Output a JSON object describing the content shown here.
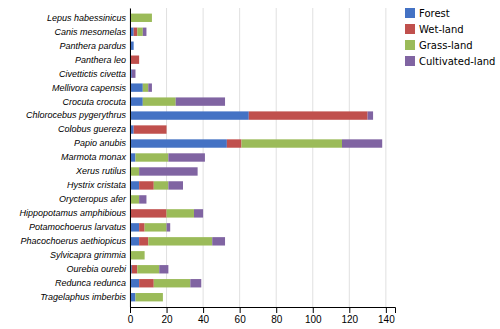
{
  "chart_data": {
    "type": "bar",
    "orientation": "horizontal",
    "stacked": true,
    "categories": [
      "Lepus habessinicus",
      "Canis mesomelas",
      "Panthera pardus",
      "Panthera leo",
      "Civettictis civetta",
      "Mellivora capensis",
      "Crocuta crocuta",
      "Chlorocebus pygerythrus",
      "Colobus guereza",
      "Papio anubis",
      "Marmota monax",
      "Xerus rutilus",
      "Hystrix cristata",
      "Orycteropus afer",
      "Hippopotamus amphibious",
      "Potamochoerus larvatus",
      "Phacochoerus aethiopicus",
      "Sylvicapra grimmia",
      "Ourebia ourebi",
      "Redunca redunca",
      "Tragelaphus imberbis"
    ],
    "series": [
      {
        "name": "Forest",
        "color": "#4472C4",
        "values": [
          0,
          2,
          2,
          0,
          1,
          7,
          7,
          65,
          2,
          53,
          3,
          0,
          5,
          0,
          0,
          5,
          5,
          0,
          1,
          5,
          3
        ]
      },
      {
        "name": "Wet-land",
        "color": "#C0504D",
        "values": [
          0,
          2,
          0,
          5,
          0,
          0,
          0,
          65,
          18,
          8,
          0,
          0,
          8,
          0,
          20,
          3,
          5,
          0,
          3,
          8,
          0
        ]
      },
      {
        "name": "Grass-land",
        "color": "#9BBB59",
        "values": [
          12,
          3,
          0,
          0,
          0,
          3,
          18,
          0,
          0,
          55,
          18,
          5,
          8,
          5,
          15,
          12,
          35,
          8,
          12,
          20,
          15
        ]
      },
      {
        "name": "Cultivated-land",
        "color": "#8064A2",
        "values": [
          0,
          2,
          0,
          0,
          2,
          2,
          27,
          3,
          0,
          22,
          20,
          32,
          8,
          4,
          5,
          2,
          7,
          0,
          5,
          6,
          0
        ]
      }
    ],
    "xlim": [
      0,
      145
    ],
    "xticks": [
      0,
      20,
      40,
      60,
      80,
      100,
      120,
      140
    ],
    "grid": true,
    "legend": "right"
  }
}
